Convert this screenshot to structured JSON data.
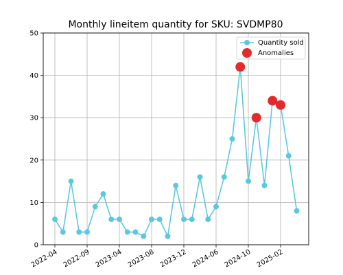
{
  "chart_data": {
    "type": "line",
    "title": "Monthly lineitem quantity for SKU: SVDMP80",
    "xlabel": "",
    "ylabel": "",
    "ylim": [
      0,
      50
    ],
    "yticks": [
      0,
      10,
      20,
      30,
      40,
      50
    ],
    "xtick_labels": [
      "2022-04",
      "2022-09",
      "2023-04",
      "2023-08",
      "2023-12",
      "2024-06",
      "2024-10",
      "2025-02"
    ],
    "grid": true,
    "legend_position": "top-right",
    "series": [
      {
        "name": "Quantity sold",
        "color": "#5bc8e0",
        "marker": "circle",
        "values": [
          6,
          3,
          15,
          3,
          3,
          9,
          12,
          6,
          6,
          3,
          3,
          2,
          6,
          6,
          2,
          14,
          6,
          6,
          16,
          6,
          9,
          16,
          25,
          42,
          15,
          30,
          14,
          34,
          33,
          21,
          8
        ]
      },
      {
        "name": "Anomalies",
        "color": "#e32b2b",
        "marker": "large-circle",
        "points": [
          {
            "index": 23,
            "value": 42
          },
          {
            "index": 25,
            "value": 30
          },
          {
            "index": 27,
            "value": 34
          },
          {
            "index": 28,
            "value": 33
          }
        ]
      }
    ]
  }
}
